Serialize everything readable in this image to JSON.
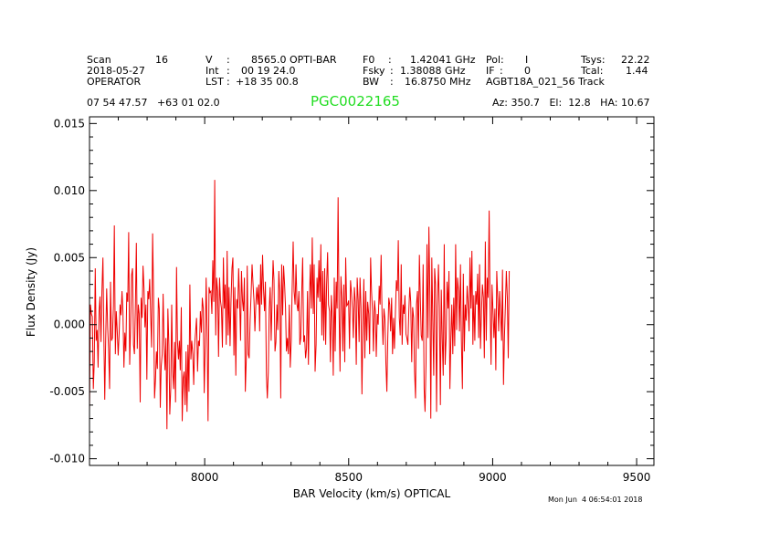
{
  "header": {
    "row1": [
      {
        "label": "Scan",
        "value": "16"
      },
      {
        "label": "V",
        "sep": ":",
        "value": "8565.0 OPTI-BAR"
      },
      {
        "label": "F0",
        "sep": ":",
        "value": "1.42041 GHz"
      },
      {
        "label": "Pol:",
        "value": "I"
      },
      {
        "label": "Tsys:",
        "value": "22.22"
      }
    ],
    "row2": [
      {
        "label": "2018-05-27"
      },
      {
        "label": "Int",
        "sep": ":",
        "value": "00 19 24.0"
      },
      {
        "label": "Fsky",
        "sep": ":",
        "value": "1.38088 GHz"
      },
      {
        "label": "IF",
        "sep": ":",
        "value": "0"
      },
      {
        "label": "Tcal:",
        "value": "1.44"
      }
    ],
    "row3": [
      {
        "label": "OPERATOR"
      },
      {
        "label": "LST",
        "sep": ":",
        "value": "+18 35 00.8"
      },
      {
        "label": "BW",
        "sep": ":",
        "value": "16.8750 MHz"
      },
      {
        "label": "AGBT18A_021_56 Track"
      }
    ],
    "coords": "07 54 47.57   +63 01 02.0",
    "object": "PGC0022165",
    "pointing": "Az: 350.7   El:  12.8   HA: 10.67",
    "timestamp": "Mon Jun  4 06:54:01 2018"
  },
  "colors": {
    "trace": "#ee0000",
    "object": "#22dd22",
    "axes": "#000000"
  },
  "chart_data": {
    "type": "line",
    "xlabel": "BAR Velocity (km/s) OPTICAL",
    "ylabel": "Flux Density (Jy)",
    "xlim": [
      7600,
      9560
    ],
    "ylim": [
      -0.0105,
      0.0155
    ],
    "xticks": [
      8000,
      8500,
      9000,
      9500
    ],
    "xtick_labels": [
      "8000",
      "8500",
      "9000",
      "9500"
    ],
    "yticks": [
      -0.01,
      -0.005,
      0.0,
      0.005,
      0.01,
      0.015
    ],
    "ytick_labels": [
      "-0.010",
      "-0.005",
      "0.000",
      "0.005",
      "0.010",
      "0.015"
    ],
    "grid": false,
    "series": [
      {
        "x_start": 7600,
        "x_step": 3.32,
        "y": [
          -0.0065,
          0.0015,
          0.0008,
          0.0006,
          -0.0048,
          -0.0028,
          0.0042,
          -0.0012,
          -0.0004,
          -0.0032,
          0.001,
          0.0021,
          -0.0013,
          0.0025,
          0.005,
          -0.0007,
          -0.0056,
          -0.0008,
          0.0027,
          -0.0002,
          -0.0018,
          -0.0048,
          0.0032,
          -0.0012,
          -0.001,
          0.0014,
          0.0074,
          -0.0022,
          0.001,
          -0.0005,
          -0.0023,
          -0.0006,
          0.0015,
          0.0007,
          0.0025,
          0.001,
          -0.0032,
          -0.0006,
          -0.002,
          0.0024,
          0.0017,
          0.0069,
          -0.003,
          -0.0002,
          0.0037,
          0.0042,
          -0.0015,
          -0.0022,
          0.0012,
          0.0061,
          -0.0018,
          0.0015,
          0.0008,
          -0.0058,
          0.002,
          0.0005,
          0.0044,
          0.0027,
          -0.0002,
          0.0015,
          -0.0041,
          0.0025,
          0.0019,
          0.0034,
          0.0006,
          -0.0017,
          0.0068,
          0.0025,
          -0.0055,
          -0.0042,
          -0.002,
          -0.0033,
          0.002,
          0.0012,
          -0.0062,
          -0.0031,
          -0.0022,
          0.0023,
          -0.0015,
          -0.0034,
          -0.001,
          -0.0078,
          0.0012,
          -0.0015,
          -0.0067,
          -0.0047,
          0.0015,
          -0.0035,
          -0.0048,
          -0.0013,
          -0.0058,
          0.0043,
          -0.0012,
          -0.0026,
          -0.0012,
          -0.0034,
          0.0013,
          -0.0072,
          -0.004,
          -0.0035,
          -0.006,
          -0.002,
          -0.0065,
          -0.0015,
          -0.005,
          0.003,
          -0.0026,
          -0.0012,
          -0.0022,
          -0.0045,
          -0.0015,
          -0.0005,
          0.0005,
          -0.0035,
          -0.0012,
          -0.0016,
          0.001,
          -0.0006,
          0.002,
          0.0012,
          -0.0051,
          -0.0015,
          0.0035,
          -0.0007,
          -0.0072,
          0.0028,
          0.0024,
          0.0025,
          0.0008,
          0.0048,
          0.0017,
          0.0108,
          -0.0008,
          0.0035,
          0.0025,
          -0.0024,
          0.0035,
          0.0018,
          0.0012,
          -0.0017,
          0.005,
          0.0012,
          0.003,
          -0.0015,
          0.0055,
          -0.0008,
          0.0028,
          -0.0016,
          0.0016,
          0.0042,
          0.005,
          -0.0023,
          0.0028,
          -0.0038,
          0.0019,
          0.0012,
          0.0042,
          0.0017,
          -0.0012,
          0.004,
          0.0018,
          0.001,
          0.0035,
          -0.005,
          -0.0025,
          0.0044,
          -0.0022,
          -0.0025,
          0.0004,
          0.0022,
          0.0045,
          0.0031,
          0.0018,
          -0.0005,
          0.0015,
          0.0028,
          0.0015,
          0.003,
          -0.0005,
          0.0045,
          0.0015,
          0.0052,
          0.0027,
          0.001,
          0.0032,
          -0.0038,
          -0.0055,
          -0.0035,
          0.0012,
          0.0028,
          -0.0012,
          0.0018,
          0.0048,
          0.0033,
          -0.002,
          -0.0013,
          0.0015,
          -0.0004,
          0.004,
          0.0025,
          -0.0055,
          0.0045,
          0.0007,
          0.0044,
          0.003,
          0.0013,
          -0.002,
          -0.001,
          -0.0022,
          0.0015,
          -0.0032,
          -0.0012,
          0.0027,
          0.0062,
          0.0025,
          0.0015,
          0.0045,
          0.0015,
          0.001,
          0.0025,
          -0.0015,
          -0.001,
          0.0025,
          0.005,
          -0.0013,
          -0.0008,
          -0.0025,
          -0.0018,
          0.0025,
          -0.003,
          0.0018,
          0.0045,
          0.0012,
          0.0065,
          0.0008,
          0.0045,
          -0.0035,
          -0.0015,
          0.0035,
          0.002,
          0.0048,
          0.0017,
          0.006,
          -0.0008,
          0.004,
          -0.0012,
          0.0042,
          -0.0015,
          0.003,
          0.0054,
          0.0015,
          0.001,
          -0.0028,
          0.0022,
          0.0005,
          -0.0038,
          0.0035,
          -0.002,
          0.0032,
          0.0012,
          0.0095,
          0.0012,
          -0.0035,
          0.0036,
          0.002,
          -0.002,
          0.003,
          -0.0028,
          0.005,
          0.0014,
          0.0015,
          0.0018,
          -0.0018,
          0.0033,
          0.0024,
          0.0012,
          -0.001,
          0.0028,
          0.0017,
          -0.003,
          0.0035,
          0.0018,
          -0.0013,
          0.0035,
          0.0012,
          -0.0052,
          0.0002,
          0.0034,
          -0.0025,
          0.0025,
          -0.0012,
          0.0017,
          0.0008,
          -0.0022,
          0.005,
          0.0025,
          0.001,
          -0.002,
          0.0018,
          0.001,
          -0.0024,
          0.0008,
          0.0,
          0.0029,
          0.0015,
          0.0052,
          0.0008,
          -0.0015,
          0.0012,
          0.0004,
          -0.0028,
          -0.005,
          -0.001,
          0.002,
          0.0015,
          -0.0005,
          0.002,
          -0.0022,
          0.0005,
          -0.0018,
          0.001,
          0.0033,
          0.0025,
          0.0063,
          0.0005,
          -0.0008,
          0.0045,
          -0.0015,
          0.0015,
          0.0008,
          0.0022,
          -0.0007,
          -0.001,
          -0.0015,
          0.001,
          0.0028,
          0.0017,
          -0.0028,
          0.0013,
          0.0005,
          -0.0035,
          -0.0055,
          0.0015,
          0.0025,
          -0.0018,
          0.0052,
          0.002,
          -0.0008,
          -0.0012,
          0.0045,
          -0.0048,
          -0.0065,
          -0.0028,
          0.006,
          -0.001,
          0.0073,
          0.0022,
          -0.007,
          0.005,
          0.0008,
          -0.0038,
          0.0042,
          0.003,
          -0.0065,
          0.0015,
          0.0045,
          0.0012,
          -0.006,
          0.0026,
          -0.0012,
          -0.0038,
          0.006,
          -0.003,
          -0.001,
          0.0032,
          0.0012,
          0.004,
          -0.0048,
          -0.001,
          0.0015,
          -0.0022,
          0.002,
          -0.0016,
          0.006,
          -0.0004,
          0.0035,
          0.0025,
          -0.0005,
          0.0045,
          -0.0012,
          -0.0048,
          0.0038,
          -0.002,
          0.0015,
          0.0003,
          0.0029,
          0.0016,
          -0.0005,
          0.005,
          0.0012,
          0.0055,
          -0.0015,
          0.0022,
          -0.0012,
          0.0025,
          0.0015,
          0.0038,
          -0.001,
          0.0045,
          -0.0018,
          0.001,
          0.003,
          0.002,
          -0.0025,
          0.0062,
          -0.0012,
          0.0035,
          0.002,
          0.0085,
          0.0015,
          -0.003,
          0.003,
          0.001,
          -0.001,
          0.0012,
          -0.0034,
          0.004,
          0.002,
          -0.0005,
          0.0025,
          0.0008,
          -0.0012,
          0.0041,
          -0.0045,
          -0.001,
          0.0015,
          0.004,
          0.002,
          -0.0025,
          0.004
        ]
      }
    ]
  }
}
